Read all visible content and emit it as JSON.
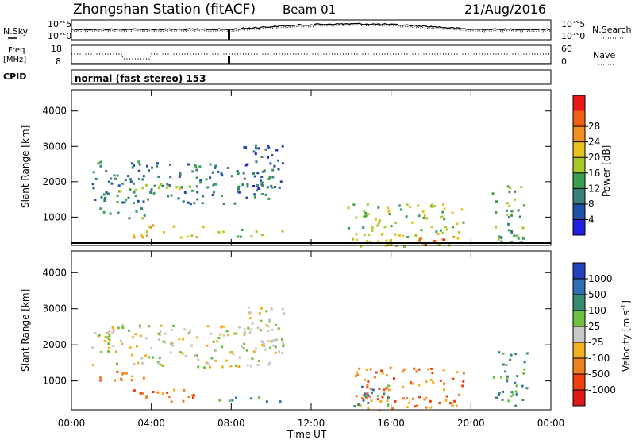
{
  "header": {
    "station": "Zhongshan Station (fitACF)",
    "beam": "Beam 01",
    "date": "21/Aug/2016"
  },
  "status_panels": {
    "nsky_label": "N.Sky",
    "nsearch_label": "N.Search",
    "noise_ticks_left": [
      "10^5",
      "10^0"
    ],
    "noise_ticks_right": [
      "10^5",
      "10^0"
    ],
    "freq_label_1": "Freq.",
    "freq_label_2": "[MHz]",
    "freq_ticks": [
      "18",
      "8"
    ],
    "nave_label": "Nave",
    "nave_ticks": [
      "60",
      "0"
    ],
    "cpid_label": "CPID",
    "cpid_text": "normal (fast stereo) 153"
  },
  "colors": {
    "power_scale": [
      "#2020e0",
      "#2050a8",
      "#3b7f7a",
      "#3aa050",
      "#a8c828",
      "#e8c020",
      "#f09020",
      "#f06010",
      "#e81818"
    ],
    "velocity_scale": [
      "#2040c0",
      "#3070b0",
      "#3a8a70",
      "#70c040",
      "#c8c8c8",
      "#f0b020",
      "#f08020",
      "#f04010",
      "#e01818"
    ]
  },
  "chart_data": [
    {
      "type": "heatmap",
      "name": "power",
      "ylabel": "Slant Range [km]",
      "xlabel": "",
      "x_ticks": [
        "00:00",
        "04:00",
        "08:00",
        "12:00",
        "16:00",
        "20:00",
        "00:00"
      ],
      "y_ticks": [
        1000,
        2000,
        3000,
        4000
      ],
      "ylim": [
        200,
        4600
      ],
      "xlim_hours": [
        0,
        24
      ],
      "colorbar_label": "Power [dB]",
      "colorbar_ticks": [
        "4",
        "8",
        "12",
        "16",
        "20",
        "24",
        "28"
      ],
      "echo_regions": [
        {
          "t0": 1.0,
          "t1": 10.2,
          "r0": 1400,
          "r1": 2600,
          "level": 2
        },
        {
          "t0": 2.2,
          "t1": 6.2,
          "r0": 1700,
          "r1": 2000,
          "level": 4
        },
        {
          "t0": 8.6,
          "t1": 10.6,
          "r0": 1800,
          "r1": 3100,
          "level": 1
        },
        {
          "t0": 1.2,
          "t1": 3.8,
          "r0": 1000,
          "r1": 1300,
          "level": 3
        },
        {
          "t0": 3.0,
          "t1": 6.8,
          "r0": 450,
          "r1": 800,
          "level": 5
        },
        {
          "t0": 7.0,
          "t1": 10.6,
          "r0": 450,
          "r1": 700,
          "level": 4
        },
        {
          "t0": 13.8,
          "t1": 19.6,
          "r0": 200,
          "r1": 1400,
          "level": 4
        },
        {
          "t0": 17.2,
          "t1": 19.2,
          "r0": 200,
          "r1": 500,
          "level": 7
        },
        {
          "t0": 21.0,
          "t1": 22.8,
          "r0": 300,
          "r1": 1900,
          "level": 3
        }
      ]
    },
    {
      "type": "heatmap",
      "name": "velocity",
      "ylabel": "Slant Range [km]",
      "xlabel": "Time UT",
      "x_ticks": [
        "00:00",
        "04:00",
        "08:00",
        "12:00",
        "16:00",
        "20:00",
        "00:00"
      ],
      "y_ticks": [
        1000,
        2000,
        3000,
        4000
      ],
      "ylim": [
        200,
        4600
      ],
      "xlim_hours": [
        0,
        24
      ],
      "colorbar_label": "Velocity [m s",
      "colorbar_label_sup": "-1",
      "colorbar_label_end": "]",
      "colorbar_ticks": [
        "1000",
        "500",
        "100",
        "25",
        "-25",
        "-100",
        "-500",
        "-1000"
      ],
      "echo_regions": [
        {
          "t0": 1.0,
          "t1": 10.2,
          "r0": 1400,
          "r1": 2600,
          "level": 4
        },
        {
          "t0": 8.6,
          "t1": 10.6,
          "r0": 1800,
          "r1": 3100,
          "level": 4
        },
        {
          "t0": 1.2,
          "t1": 3.8,
          "r0": 1000,
          "r1": 1300,
          "level": 6
        },
        {
          "t0": 3.0,
          "t1": 6.8,
          "r0": 450,
          "r1": 800,
          "level": 6
        },
        {
          "t0": 7.0,
          "t1": 10.6,
          "r0": 450,
          "r1": 700,
          "level": 2
        },
        {
          "t0": 13.8,
          "t1": 19.6,
          "r0": 200,
          "r1": 1400,
          "level": 6
        },
        {
          "t0": 14.0,
          "t1": 16.0,
          "r0": 300,
          "r1": 900,
          "level": 2
        },
        {
          "t0": 21.0,
          "t1": 22.8,
          "r0": 300,
          "r1": 1900,
          "level": 2
        }
      ]
    }
  ]
}
